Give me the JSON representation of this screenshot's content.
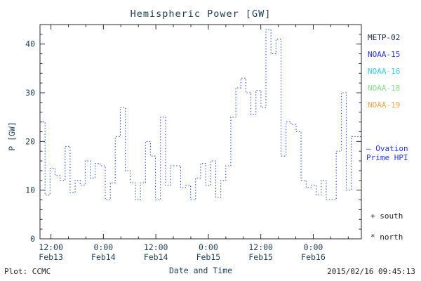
{
  "title": "Hemispheric Power [GW]",
  "footer": {
    "left": "Plot: CCMC",
    "right": "2015/02/16 09:45:13"
  },
  "legend": {
    "items": [
      {
        "label": "METP-02",
        "color": "#1a2a44"
      },
      {
        "label": "NOAA-15",
        "color": "#2233ee"
      },
      {
        "label": "NOAA-16",
        "color": "#33ccf0"
      },
      {
        "label": "NOAA-18",
        "color": "#86e086"
      },
      {
        "label": "NOAA-19",
        "color": "#f2a445"
      }
    ],
    "ovation": {
      "label_line1": "– Ovation",
      "label_line2": "Prime HPI",
      "color": "#2233ee"
    },
    "markers": [
      {
        "label": "+ south"
      },
      {
        "label": "* north"
      }
    ]
  },
  "chart_data": {
    "type": "line",
    "line_style": "dotted-step",
    "color": "#2a55cc",
    "axis_color": "#2b2b33",
    "title": "Hemispheric Power [GW]",
    "xlabel": "Date and Time",
    "ylabel": "P [GW]",
    "ylim": [
      0,
      44
    ],
    "y_ticks": [
      0,
      10,
      20,
      30,
      40
    ],
    "y_minor_step": 2,
    "x_range_hours": [
      0,
      73.5
    ],
    "x_minor_step": 4,
    "x_ticks": [
      {
        "hour": 2.5,
        "time": "12:00",
        "date": "Feb13"
      },
      {
        "hour": 14.5,
        "time": "0:00",
        "date": "Feb14"
      },
      {
        "hour": 26.5,
        "time": "12:00",
        "date": "Feb14"
      },
      {
        "hour": 38.5,
        "time": "0:00",
        "date": "Feb15"
      },
      {
        "hour": 50.5,
        "time": "12:00",
        "date": "Feb15"
      },
      {
        "hour": 62.5,
        "time": "0:00",
        "date": "Feb16"
      }
    ],
    "series": [
      {
        "name": "Ovation Prime HPI",
        "values": [
          24,
          9,
          14.5,
          13,
          12,
          19,
          9.5,
          12,
          11,
          16,
          12.5,
          15.5,
          15,
          8,
          11.5,
          21,
          27,
          14,
          11.5,
          8,
          11.5,
          20,
          17,
          8,
          25,
          11,
          15,
          15,
          10.5,
          11,
          8,
          12.5,
          15.5,
          11,
          16,
          8.5,
          12,
          15,
          25,
          31,
          33,
          30,
          25.5,
          30.5,
          27,
          43,
          38,
          41,
          17,
          24,
          23.5,
          22,
          12,
          10.5,
          11,
          9,
          12,
          8,
          8,
          18,
          30,
          10,
          21,
          21
        ]
      }
    ]
  }
}
